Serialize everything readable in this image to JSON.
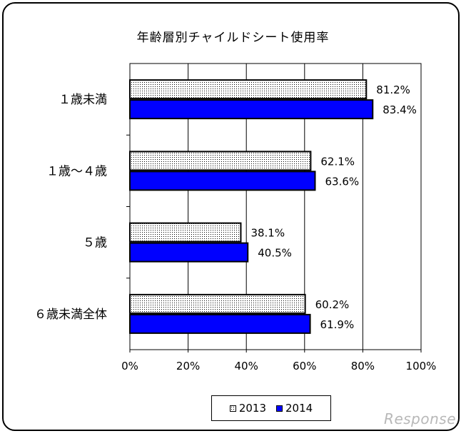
{
  "chart_data": {
    "type": "bar",
    "orientation": "horizontal",
    "title": "年齢層別チャイルドシート使用率",
    "categories": [
      "１歳未満",
      "１歳～４歳",
      "５歳",
      "６歳未満全体"
    ],
    "series": [
      {
        "name": "2013",
        "values": [
          81.2,
          62.1,
          38.1,
          60.2
        ],
        "labels": [
          "81.2%",
          "62.1%",
          "38.1%",
          "60.2%"
        ],
        "color": "#ffffff",
        "pattern": "dotted"
      },
      {
        "name": "2014",
        "values": [
          83.4,
          63.6,
          40.5,
          61.9
        ],
        "labels": [
          "83.4%",
          "63.6%",
          "40.5%",
          "61.9%"
        ],
        "color": "#0000ff"
      }
    ],
    "xlim": [
      0,
      100
    ],
    "xticks": [
      "0%",
      "20%",
      "40%",
      "60%",
      "80%",
      "100%"
    ],
    "grid": true,
    "legend_position": "bottom"
  },
  "watermark": "Response"
}
